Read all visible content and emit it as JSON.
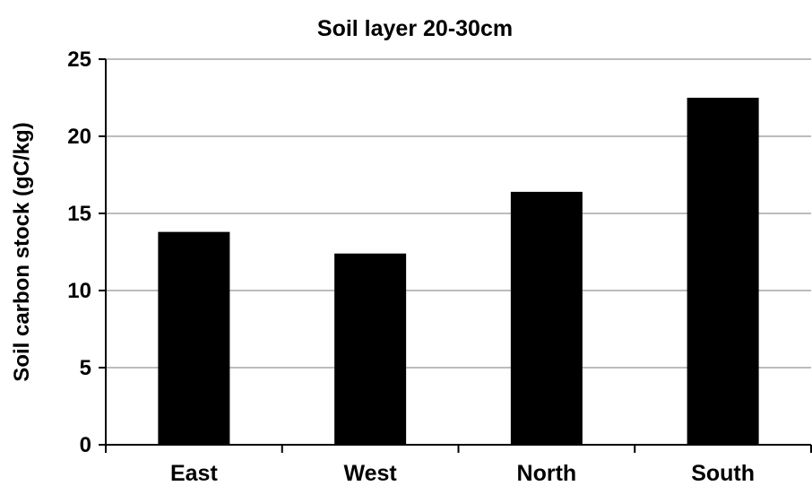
{
  "chart_data": {
    "type": "bar",
    "title": "Soil layer 20-30cm",
    "xlabel": "",
    "ylabel": "Soil carbon stock (gC/kg)",
    "categories": [
      "East",
      "West",
      "North",
      "South"
    ],
    "values": [
      13.8,
      12.4,
      16.4,
      22.5
    ],
    "ylim": [
      0,
      25
    ],
    "yticks": [
      0,
      5,
      10,
      15,
      20,
      25
    ],
    "grid": true,
    "legend": "none",
    "bar_color": "#000000",
    "grid_color": "#a6a6a6",
    "axis_color": "#000000"
  }
}
